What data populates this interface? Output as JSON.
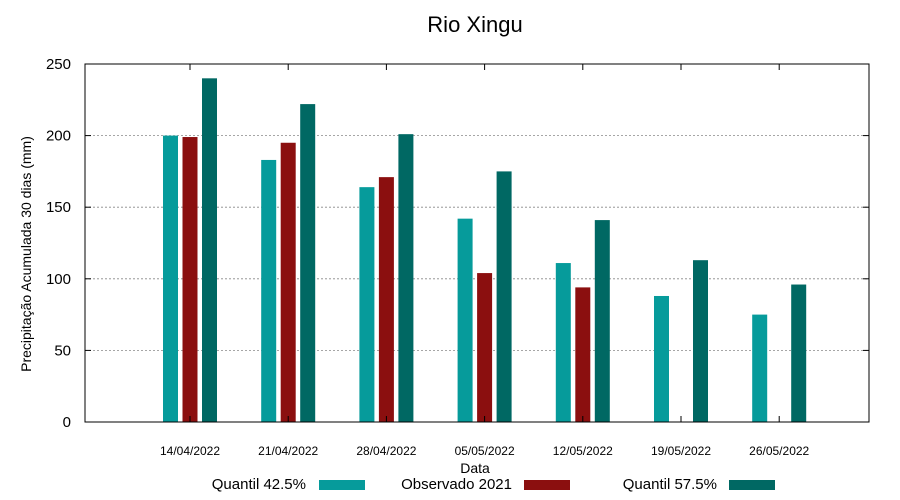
{
  "chart_data": {
    "type": "bar",
    "title": "Rio Xingu",
    "xlabel": "Data",
    "ylabel": "Precipitação Acumulada 30 dias (mm)",
    "ylim": [
      0,
      250
    ],
    "yticks": [
      0,
      50,
      100,
      150,
      200,
      250
    ],
    "grid": true,
    "legend_position": "bottom",
    "categories": [
      "14/04/2022",
      "21/04/2022",
      "28/04/2022",
      "05/05/2022",
      "12/05/2022",
      "19/05/2022",
      "26/05/2022"
    ],
    "series": [
      {
        "name": "Quantil 42.5%",
        "color": "#069b9b",
        "values": [
          200,
          183,
          164,
          142,
          111,
          88,
          75
        ]
      },
      {
        "name": "Observado 2021",
        "color": "#8b0f0f",
        "values": [
          199,
          195,
          171,
          104,
          94,
          null,
          null
        ]
      },
      {
        "name": "Quantil 57.5%",
        "color": "#006863",
        "values": [
          240,
          222,
          201,
          175,
          141,
          113,
          96
        ]
      }
    ]
  }
}
